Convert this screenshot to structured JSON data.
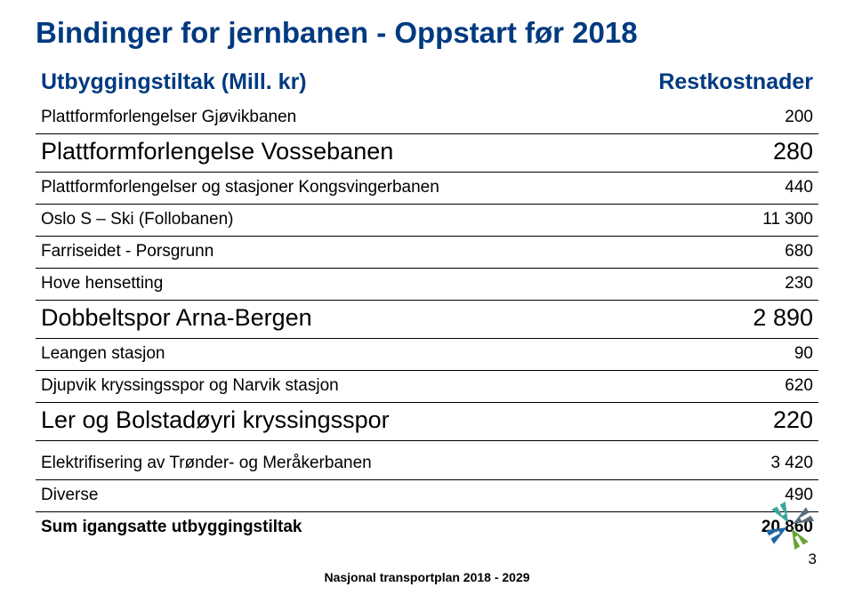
{
  "title": "Bindinger for jernbanen - Oppstart før 2018",
  "header": {
    "left": "Utbyggingstiltak (Mill. kr)",
    "right": "Restkostnader"
  },
  "rows": [
    {
      "label": "Plattformforlengelser Gjøvikbanen",
      "value": "200",
      "style": "row"
    },
    {
      "label": "Plattformforlengelse Vossebanen",
      "value": "280",
      "style": "big"
    },
    {
      "label": "Plattformforlengelser og stasjoner Kongsvingerbanen",
      "value": "440",
      "style": "row"
    },
    {
      "label": "Oslo S – Ski (Follobanen)",
      "value": "11 300",
      "style": "row"
    },
    {
      "label": "Farriseidet - Porsgrunn",
      "value": "680",
      "style": "row"
    },
    {
      "label": "Hove hensetting",
      "value": "230",
      "style": "row"
    },
    {
      "label": "Dobbeltspor Arna-Bergen",
      "value": "2 890",
      "style": "big"
    },
    {
      "label": "Leangen stasjon",
      "value": "90",
      "style": "row"
    },
    {
      "label": "Djupvik kryssingsspor og Narvik stasjon",
      "value": "620",
      "style": "row"
    },
    {
      "label": "Ler og Bolstadøyri kryssingsspor",
      "value": "220",
      "style": "big"
    },
    {
      "label": "",
      "value": "",
      "style": "spacer"
    },
    {
      "label": "Elektrifisering av Trønder- og Meråkerbanen",
      "value": "3 420",
      "style": "row"
    },
    {
      "label": "Diverse",
      "value": "490",
      "style": "row"
    },
    {
      "label": "Sum igangsatte utbyggingstiltak",
      "value": "20 860",
      "style": "row bold noborder"
    }
  ],
  "footer": "Nasjonal transportplan 2018 - 2029",
  "pagenum": "3",
  "colors": {
    "heading": "#003a80",
    "logo1": "#5b6b7a",
    "logo2": "#6aa235",
    "logo3": "#1e66a8",
    "logo4": "#3aa6a0"
  }
}
